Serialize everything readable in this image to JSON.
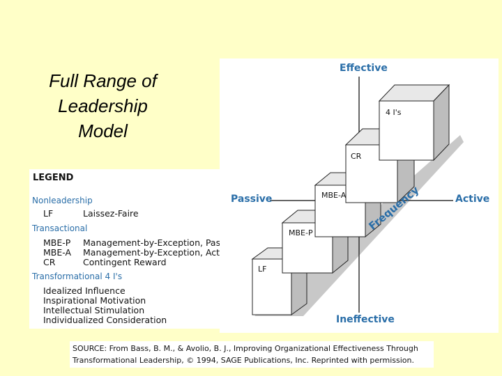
{
  "title": {
    "line1": "Full Range of",
    "line2": "Leadership",
    "line3": "Model"
  },
  "legend": {
    "heading": "LEGEND",
    "nonleadership": {
      "label": "Nonleadership",
      "items": [
        {
          "abbr": "LF",
          "def": "Laissez-Faire"
        }
      ]
    },
    "transactional": {
      "label": "Transactional",
      "items": [
        {
          "abbr": "MBE-P",
          "def": "Management-by-Exception, Passive"
        },
        {
          "abbr": "MBE-A",
          "def": "Management-by-Exception, Active"
        },
        {
          "abbr": "CR",
          "def": "Contingent Reward"
        }
      ]
    },
    "transformational": {
      "label": "Transformational 4 I's",
      "items": [
        "Idealized Influence",
        "Inspirational Motivation",
        "Intellectual Stimulation",
        "Individualized Consideration"
      ]
    }
  },
  "diagram": {
    "axis_top": "Effective",
    "axis_bottom": "Ineffective",
    "axis_left": "Passive",
    "axis_right": "Active",
    "diagonal": "Frequency",
    "boxes": [
      "LF",
      "MBE-P",
      "MBE-A",
      "CR",
      "4 I's"
    ],
    "colors": {
      "accent": "#2a6ea8",
      "platform": "#c8c8c8",
      "box_side": "#bdbdbd"
    }
  },
  "source": {
    "line1": "SOURCE: From Bass, B. M., & Avolio, B. J., Improving Organizational Effectiveness Through",
    "line2": "Transformational Leadership, © 1994, SAGE Publications, Inc. Reprinted with permission."
  }
}
